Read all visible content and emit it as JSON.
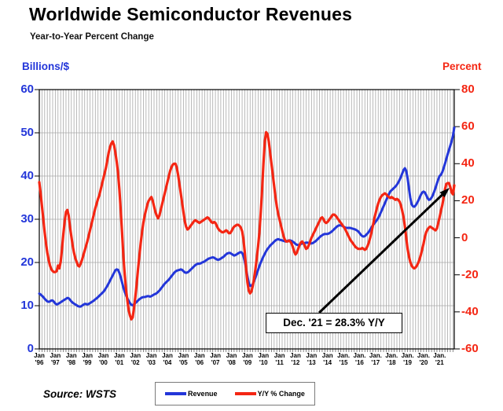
{
  "header": {
    "title": "Worldwide Semiconductor Revenues",
    "subtitle": "Year-to-Year Percent Change"
  },
  "source_label": "Source: WSTS",
  "colors": {
    "revenue_blue": "#2336d9",
    "yoy_red": "#f42613",
    "grid_gray": "#a8a8a8",
    "axis_black": "#000000"
  },
  "chart_data": {
    "type": "line",
    "title": "Worldwide Semiconductor Revenues",
    "subtitle": "Year-to-Year Percent Change",
    "x_range": [
      "Jan 1996",
      "Dec 2021"
    ],
    "x_unit": "month",
    "grid": "dense vertical gridlines (bimonthly) and horizontal gridlines every 10 on left scale",
    "x_tick_labels": [
      "Jan '96",
      "Jan '97",
      "Jan '98",
      "Jan '99",
      "Jan '00",
      "Jan '01",
      "Jan '02",
      "Jan '03",
      "Jan '04",
      "Jan '05",
      "Jan '06",
      "Jan '07",
      "Jan '08",
      "Jan '09",
      "Jan '10",
      "Jan '11",
      "Jan '12",
      "Jan '13",
      "Jan '14",
      "Jan. '15",
      "Jan. '16",
      "Jan. '17",
      "Jan. '18",
      "Jan. '19",
      "Jan. '20",
      "Jan. '21"
    ],
    "left_axis": {
      "title": "Billions/$",
      "min": 0,
      "max": 60,
      "tick_step": 10,
      "ticks": [
        0,
        10,
        20,
        30,
        40,
        50,
        60
      ],
      "color": "#2336d9"
    },
    "right_axis": {
      "title": "Percent",
      "min": -60,
      "max": 80,
      "tick_step": 20,
      "ticks": [
        -60,
        -40,
        -20,
        0,
        20,
        40,
        60,
        80
      ],
      "color": "#f42613"
    },
    "annotation": {
      "text": "Dec. '21 = 28.3% Y/Y",
      "points_to": "Dec 2021 value of Y/Y % Change line"
    },
    "legend_position": "bottom-center",
    "series": [
      {
        "name": "Revenue",
        "axis": "left",
        "color": "#2336d9",
        "unit": "US$ billions per month",
        "values": [
          12.8,
          12.6,
          12.3,
          12.0,
          11.6,
          11.3,
          11.0,
          10.9,
          11.0,
          11.2,
          11.2,
          10.9,
          10.5,
          10.3,
          10.4,
          10.6,
          10.8,
          11.0,
          11.2,
          11.4,
          11.6,
          11.8,
          11.7,
          11.4,
          11.0,
          10.7,
          10.5,
          10.3,
          10.1,
          9.9,
          9.8,
          9.8,
          10.0,
          10.2,
          10.4,
          10.4,
          10.3,
          10.4,
          10.6,
          10.8,
          11.0,
          11.2,
          11.5,
          11.7,
          12.0,
          12.3,
          12.6,
          12.9,
          13.2,
          13.6,
          14.1,
          14.6,
          15.2,
          15.8,
          16.4,
          17.0,
          17.6,
          18.2,
          18.4,
          18.3,
          17.6,
          16.6,
          15.4,
          14.2,
          13.2,
          12.4,
          11.7,
          11.1,
          10.6,
          10.2,
          10.1,
          10.3,
          10.6,
          10.9,
          11.2,
          11.5,
          11.7,
          11.9,
          12.0,
          12.0,
          12.1,
          12.2,
          12.2,
          12.1,
          12.2,
          12.4,
          12.6,
          12.7,
          12.9,
          13.2,
          13.5,
          13.9,
          14.3,
          14.7,
          15.1,
          15.4,
          15.7,
          16.0,
          16.4,
          16.8,
          17.2,
          17.6,
          17.9,
          18.1,
          18.2,
          18.3,
          18.4,
          18.3,
          18.0,
          17.7,
          17.6,
          17.7,
          17.9,
          18.2,
          18.5,
          18.8,
          19.1,
          19.4,
          19.6,
          19.7,
          19.7,
          19.8,
          20.0,
          20.1,
          20.3,
          20.5,
          20.7,
          20.9,
          21.0,
          21.1,
          21.2,
          21.1,
          20.9,
          20.7,
          20.6,
          20.7,
          20.9,
          21.1,
          21.3,
          21.6,
          21.9,
          22.1,
          22.2,
          22.2,
          22.0,
          21.8,
          21.6,
          21.7,
          21.9,
          22.1,
          22.3,
          22.4,
          22.2,
          21.5,
          20.2,
          18.5,
          16.8,
          15.3,
          14.6,
          14.6,
          15.0,
          15.7,
          16.5,
          17.4,
          18.3,
          19.2,
          20.0,
          20.7,
          21.4,
          22.0,
          22.6,
          23.1,
          23.5,
          23.9,
          24.2,
          24.5,
          24.8,
          25.1,
          25.3,
          25.4,
          25.3,
          25.2,
          25.1,
          25.0,
          24.9,
          24.9,
          25.0,
          25.1,
          25.1,
          25.0,
          24.8,
          24.6,
          24.3,
          24.1,
          24.0,
          24.1,
          24.3,
          24.4,
          24.5,
          24.5,
          24.6,
          24.6,
          24.5,
          24.4,
          24.4,
          24.5,
          24.7,
          24.9,
          25.2,
          25.5,
          25.8,
          26.1,
          26.3,
          26.5,
          26.6,
          26.6,
          26.6,
          26.7,
          26.9,
          27.1,
          27.4,
          27.7,
          28.0,
          28.3,
          28.5,
          28.6,
          28.6,
          28.5,
          28.3,
          28.1,
          28.0,
          28.0,
          28.0,
          28.0,
          27.9,
          27.8,
          27.7,
          27.6,
          27.4,
          27.2,
          26.8,
          26.4,
          26.1,
          26.0,
          26.1,
          26.4,
          26.7,
          27.1,
          27.6,
          28.1,
          28.6,
          29.0,
          29.4,
          29.8,
          30.3,
          30.9,
          31.6,
          32.3,
          33.0,
          33.7,
          34.4,
          35.1,
          35.8,
          36.4,
          36.7,
          37.0,
          37.3,
          37.6,
          38.0,
          38.5,
          39.1,
          39.8,
          40.6,
          41.4,
          41.8,
          41.2,
          39.5,
          37.2,
          35.0,
          33.5,
          33.0,
          32.9,
          33.2,
          33.7,
          34.3,
          35.0,
          35.7,
          36.2,
          36.4,
          36.2,
          35.6,
          34.9,
          34.5,
          34.6,
          35.0,
          35.6,
          36.4,
          37.3,
          38.3,
          39.2,
          40.0,
          40.3,
          40.9,
          41.8,
          42.8,
          43.9,
          45.0,
          46.0,
          47.0,
          48.0,
          49.3,
          51.2
        ]
      },
      {
        "name": "Y/Y % Change",
        "axis": "right",
        "color": "#f42613",
        "unit": "percent",
        "values": [
          30,
          24,
          17,
          10,
          3,
          -3,
          -8,
          -12,
          -15,
          -17,
          -18,
          -18.5,
          -18.5,
          -18,
          -15,
          -16.5,
          -13,
          -6,
          2,
          9,
          14,
          15,
          12,
          6,
          1,
          -4,
          -8,
          -11,
          -13,
          -15,
          -15.5,
          -14,
          -12,
          -9.5,
          -7,
          -4.5,
          -2,
          1,
          4,
          7,
          10,
          13,
          16,
          18.5,
          21,
          23,
          26,
          29,
          32,
          35,
          38,
          42,
          46,
          49,
          51,
          52,
          50,
          46,
          41,
          35,
          26,
          15,
          3,
          -10,
          -20,
          -28,
          -34,
          -39,
          -42,
          -44,
          -43,
          -38,
          -32,
          -25,
          -17,
          -10,
          -3,
          3,
          8,
          12,
          15,
          18,
          20,
          21,
          22,
          20,
          17,
          14,
          12,
          10.5,
          12,
          15,
          18,
          21,
          24,
          27,
          30,
          33,
          36,
          38,
          39.5,
          40,
          40,
          38,
          34,
          29,
          24,
          19,
          14,
          9,
          6,
          4.5,
          5,
          6,
          7,
          8,
          9,
          9.5,
          9,
          8.5,
          8,
          8.5,
          9,
          9.5,
          10,
          10.5,
          11,
          10.5,
          9.5,
          8.5,
          8,
          8.5,
          8,
          6.5,
          5,
          4,
          3.5,
          3,
          3,
          3.5,
          4,
          3.5,
          2.5,
          2.5,
          3.5,
          5,
          6,
          6.5,
          7,
          7,
          6.5,
          5.5,
          3.5,
          -1,
          -8,
          -17,
          -24,
          -28.5,
          -30,
          -29,
          -26,
          -22,
          -17,
          -11,
          -4.5,
          3,
          14,
          26,
          40,
          52,
          57,
          56,
          52,
          46,
          40,
          34,
          28,
          22,
          17,
          13,
          10,
          7,
          4,
          1,
          -1,
          -2,
          -2,
          -1.5,
          -2,
          -3,
          -5,
          -7.5,
          -9,
          -8,
          -6,
          -4,
          -2.5,
          -2,
          -3,
          -4.5,
          -6,
          -5.5,
          -4,
          -2,
          0,
          1.5,
          3,
          4.5,
          6,
          7.5,
          9,
          10.5,
          11,
          10,
          8.5,
          8,
          8.5,
          9.5,
          10.5,
          11.5,
          12.5,
          12.5,
          12,
          11,
          10,
          9,
          8,
          7,
          6,
          5,
          3.5,
          2,
          0.5,
          -1,
          -2,
          -3,
          -4,
          -5,
          -5.5,
          -6,
          -6,
          -6,
          -5.5,
          -6,
          -6.5,
          -6,
          -4.5,
          -2.5,
          0,
          3,
          6.5,
          10,
          13,
          16,
          18.5,
          20.5,
          22,
          23,
          23.5,
          24,
          23.5,
          22.5,
          22,
          21.5,
          22,
          21.5,
          21,
          20.5,
          21,
          20.5,
          19.5,
          17.5,
          14.5,
          11,
          6,
          0,
          -6,
          -10,
          -13,
          -15,
          -16,
          -16.5,
          -16,
          -15,
          -13.5,
          -11.5,
          -9,
          -6,
          -3,
          0.5,
          3,
          4.5,
          5.5,
          6,
          5.5,
          5,
          4.5,
          4,
          5,
          8,
          11,
          14.5,
          17.5,
          21.5,
          26,
          29,
          29.5,
          29.5,
          27.5,
          24.5,
          23.5,
          28.3
        ]
      }
    ]
  }
}
